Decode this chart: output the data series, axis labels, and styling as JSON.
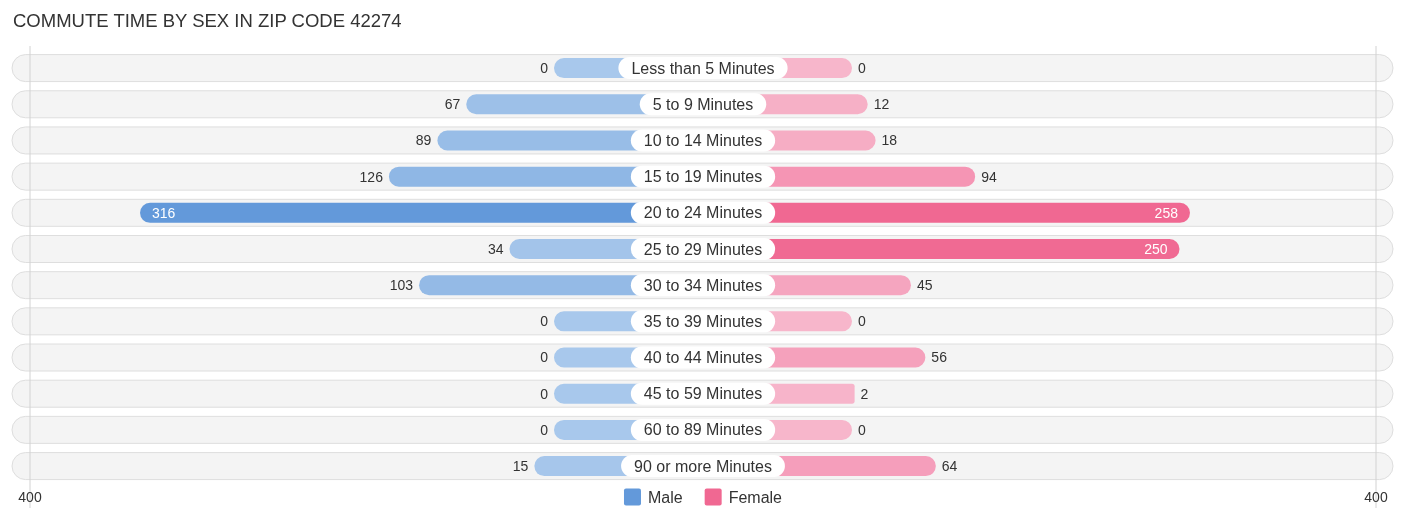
{
  "chart_data": [
    {
      "type": "bar",
      "orientation": "horizontal",
      "title": "COMMUTE TIME BY SEX IN ZIP CODE 42274",
      "categories": [
        "Less than 5 Minutes",
        "5 to 9 Minutes",
        "10 to 14 Minutes",
        "15 to 19 Minutes",
        "20 to 24 Minutes",
        "25 to 29 Minutes",
        "30 to 34 Minutes",
        "35 to 39 Minutes",
        "40 to 44 Minutes",
        "45 to 59 Minutes",
        "60 to 89 Minutes",
        "90 or more Minutes"
      ],
      "series": [
        {
          "name": "Male",
          "color": "#6399da",
          "colors": [
            "#a8c8ec",
            "#9dc0e8",
            "#98bde7",
            "#8fb7e5",
            "#6399da",
            "#a3c4ea",
            "#94bae6",
            "#a8c8ec",
            "#a8c8ec",
            "#a8c8ec",
            "#a8c8ec",
            "#a6c6eb"
          ],
          "values": [
            0,
            67,
            89,
            126,
            316,
            34,
            103,
            0,
            0,
            0,
            0,
            15
          ]
        }
      ],
      "xlim": [
        400,
        0
      ],
      "xticks": [
        400
      ],
      "legend": "bottom",
      "data_labels": true
    },
    {
      "type": "bar",
      "orientation": "horizontal",
      "categories": [
        "Less than 5 Minutes",
        "5 to 9 Minutes",
        "10 to 14 Minutes",
        "15 to 19 Minutes",
        "20 to 24 Minutes",
        "25 to 29 Minutes",
        "30 to 34 Minutes",
        "35 to 39 Minutes",
        "40 to 44 Minutes",
        "45 to 59 Minutes",
        "60 to 89 Minutes",
        "90 or more Minutes"
      ],
      "series": [
        {
          "name": "Female",
          "color": "#f06892",
          "colors": [
            "#f7b6cb",
            "#f6b0c6",
            "#f6adc4",
            "#f595b4",
            "#f06892",
            "#f06a93",
            "#f5a5bf",
            "#f7b6cb",
            "#f5a1bc",
            "#f7b4ca",
            "#f7b6cb",
            "#f59ebb"
          ],
          "values": [
            0,
            12,
            18,
            94,
            258,
            250,
            45,
            0,
            56,
            2,
            0,
            64
          ]
        }
      ],
      "xlim": [
        0,
        400
      ],
      "xticks": [
        400
      ],
      "legend": "bottom",
      "tick_labels": "x",
      "data_labels": true
    }
  ]
}
